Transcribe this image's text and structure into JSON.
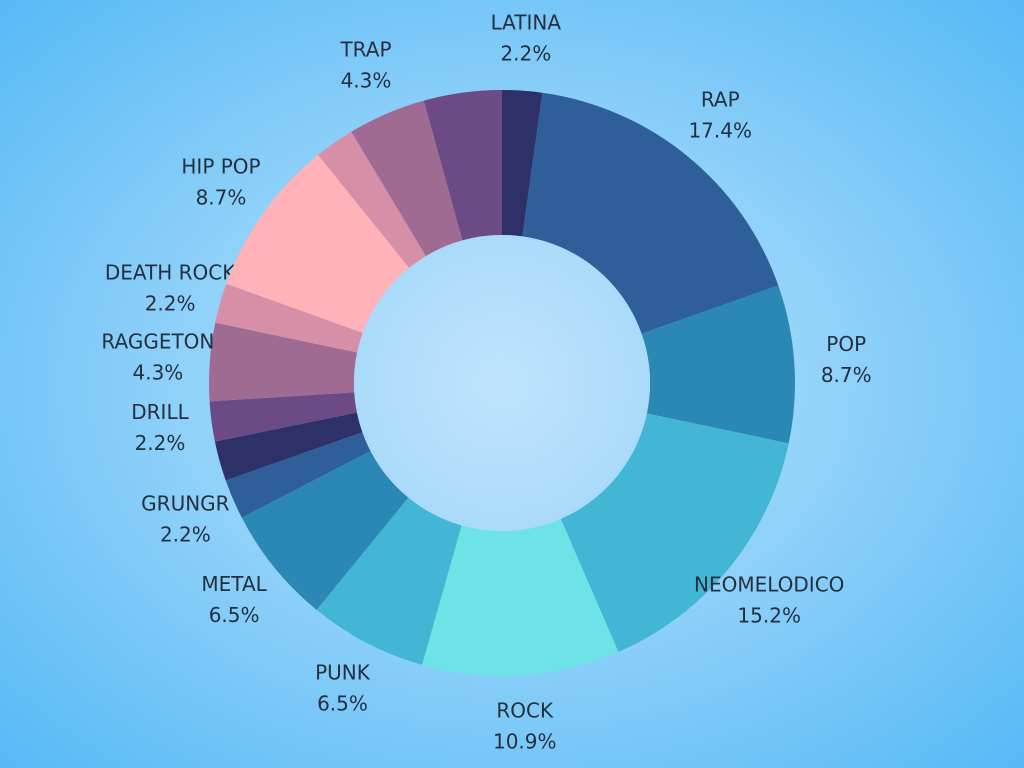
{
  "chart_data": {
    "type": "pie",
    "categories": [
      "LATINA",
      "RAP",
      "POP",
      "NEOMELODICO",
      "ROCK",
      "PUNK",
      "METAL",
      "GRUNGR",
      null,
      "DRILL",
      "RAGGETON",
      "DEATH ROCK",
      "HIP POP",
      null,
      "TRAP",
      null
    ],
    "values": [
      2.2,
      17.4,
      8.7,
      15.2,
      10.9,
      6.5,
      6.5,
      2.2,
      2.2,
      2.2,
      4.3,
      2.2,
      8.7,
      2.2,
      4.3,
      4.3
    ],
    "value_labels": [
      "2.2%",
      "17.4%",
      "8.7%",
      "15.2%",
      "10.9%",
      "6.5%",
      "6.5%",
      "2.2%",
      null,
      "2.2%",
      "4.3%",
      "2.2%",
      "8.7%",
      null,
      "4.3%",
      null
    ],
    "colors": [
      "#2e3168",
      "#2e5f99",
      "#2b88b5",
      "#42b6d4",
      "#6de3e8",
      "#42b6d4",
      "#2b88b5",
      "#2e5f99",
      "#2e3168",
      "#6b4a85",
      "#a06b93",
      "#d68fa6",
      "#ffb3b8",
      "#d68fa6",
      "#a06b93",
      "#6b4a85"
    ],
    "donut": true
  }
}
